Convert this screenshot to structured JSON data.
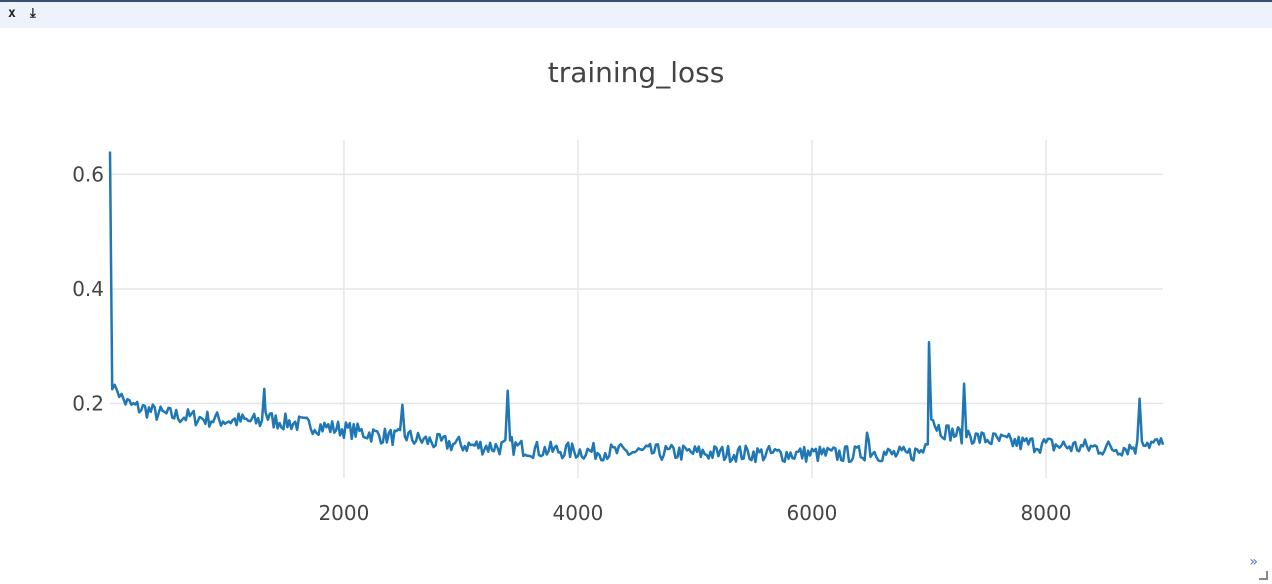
{
  "pane": {
    "close_label": "x",
    "download_label": "⤓",
    "expand_label": "»"
  },
  "chart_data": {
    "type": "line",
    "title": "training_loss",
    "xlabel": "",
    "ylabel": "",
    "xlim": [
      1,
      9000
    ],
    "ylim": [
      0.07,
      0.66
    ],
    "x_ticks": [
      2000,
      4000,
      6000,
      8000
    ],
    "y_ticks": [
      0.2,
      0.4,
      0.6
    ],
    "grid": true,
    "legend": "none",
    "series": [
      {
        "color": "#1f77b4",
        "x": [
          1,
          20,
          40,
          60,
          100,
          150,
          200,
          300,
          400,
          500,
          700,
          900,
          1100,
          1300,
          1320,
          1330,
          1350,
          1400,
          1600,
          1800,
          2000,
          2200,
          2400,
          2480,
          2500,
          2520,
          2600,
          2800,
          3000,
          3200,
          3380,
          3400,
          3420,
          3450,
          3600,
          3800,
          4000,
          4200,
          4400,
          4600,
          4800,
          5000,
          5200,
          5400,
          5600,
          5800,
          6000,
          6200,
          6400,
          6450,
          6470,
          6500,
          6600,
          6800,
          6950,
          6990,
          7000,
          7020,
          7050,
          7100,
          7200,
          7280,
          7300,
          7320,
          7400,
          7600,
          7800,
          8000,
          8200,
          8400,
          8600,
          8780,
          8800,
          8820,
          8850,
          8900,
          9000
        ],
        "y": [
          0.64,
          0.24,
          0.22,
          0.23,
          0.21,
          0.2,
          0.195,
          0.19,
          0.183,
          0.18,
          0.176,
          0.172,
          0.17,
          0.168,
          0.23,
          0.19,
          0.175,
          0.17,
          0.165,
          0.16,
          0.155,
          0.148,
          0.142,
          0.14,
          0.19,
          0.145,
          0.138,
          0.132,
          0.128,
          0.125,
          0.124,
          0.21,
          0.13,
          0.125,
          0.12,
          0.118,
          0.117,
          0.116,
          0.115,
          0.115,
          0.114,
          0.114,
          0.113,
          0.113,
          0.112,
          0.112,
          0.112,
          0.111,
          0.112,
          0.115,
          0.15,
          0.118,
          0.112,
          0.11,
          0.118,
          0.14,
          0.32,
          0.185,
          0.165,
          0.155,
          0.148,
          0.145,
          0.22,
          0.15,
          0.14,
          0.135,
          0.13,
          0.128,
          0.125,
          0.123,
          0.122,
          0.125,
          0.215,
          0.14,
          0.135,
          0.13,
          0.128
        ]
      }
    ]
  }
}
